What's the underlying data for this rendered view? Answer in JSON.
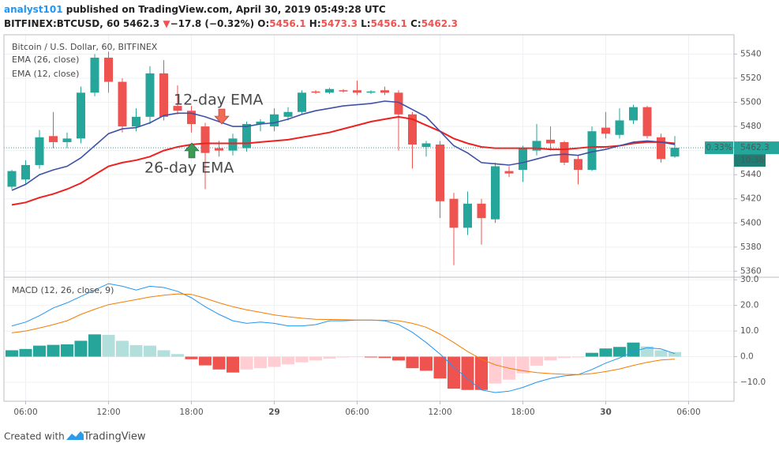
{
  "header": {
    "author": "analyst101",
    "published": "published on TradingView.com, April 30, 2019 05:49:28 UTC"
  },
  "quote": {
    "symbol": "BITFINEX:BTCUSD, 60",
    "last": "5462.3",
    "arrow": "▼",
    "change": "−17.8 (−0.32%)",
    "ohlc": [
      {
        "label": "O:",
        "value": "5456.1"
      },
      {
        "label": "H:",
        "value": "5473.3"
      },
      {
        "label": "L:",
        "value": "5456.1"
      },
      {
        "label": "C:",
        "value": "5462.3"
      }
    ]
  },
  "footer": {
    "created": "Created with",
    "brand": "TradingView"
  },
  "chart_data": [
    {
      "type": "candlestick",
      "title": "Bitcoin / U.S. Dollar, 60, BITFINEX",
      "categories": [
        null,
        "06:00",
        null,
        null,
        null,
        null,
        null,
        "12:00",
        null,
        null,
        null,
        null,
        null,
        "18:00",
        null,
        null,
        null,
        null,
        null,
        "29",
        null,
        null,
        null,
        null,
        null,
        "06:00",
        null,
        null,
        null,
        null,
        null,
        "12:00",
        null,
        null,
        null,
        null,
        null,
        "18:00",
        null,
        null,
        null,
        null,
        null,
        "30",
        null,
        null,
        null,
        null,
        null,
        "06:00"
      ],
      "open": [
        5430,
        5436,
        5448,
        5472,
        5467,
        5470,
        5508,
        5537,
        5517,
        5480,
        5488,
        5524,
        5497,
        5493,
        5480,
        5462,
        5460,
        5462,
        5482,
        5480,
        5488,
        5492,
        5509,
        5508,
        5510,
        5510,
        5508,
        5510,
        5508,
        5490,
        5463,
        5465,
        5420,
        5396,
        5416,
        5403,
        5443,
        5444,
        5460,
        5469,
        5467,
        5453,
        5444,
        5479,
        5473,
        5485,
        5496,
        5471,
        5455,
        null
      ],
      "high": [
        5444,
        5452,
        5477,
        5492,
        5475,
        5513,
        5540,
        5542,
        5520,
        5495,
        5530,
        5535,
        5514,
        5497,
        5483,
        5468,
        5474,
        5484,
        5486,
        5495,
        5496,
        5510,
        5510,
        5512,
        5511,
        5518,
        5510,
        5513,
        5510,
        5492,
        5468,
        5468,
        5425,
        5426,
        5420,
        5450,
        5447,
        5464,
        5482,
        5480,
        5468,
        5456,
        5480,
        5492,
        5495,
        5498,
        5497,
        5474,
        5472,
        null
      ],
      "low": [
        5428,
        5432,
        5445,
        5462,
        5462,
        5466,
        5505,
        5508,
        5475,
        5476,
        5482,
        5485,
        5490,
        5475,
        5428,
        5455,
        5456,
        5459,
        5476,
        5476,
        5485,
        5490,
        5507,
        5507,
        5508,
        5506,
        5507,
        5506,
        5460,
        5445,
        5455,
        5404,
        5365,
        5390,
        5382,
        5400,
        5438,
        5434,
        5456,
        5460,
        5448,
        5432,
        5443,
        5470,
        5470,
        5482,
        5470,
        5450,
        5454,
        null
      ],
      "close": [
        5443,
        5448,
        5471,
        5467,
        5470,
        5508,
        5537,
        5517,
        5480,
        5488,
        5524,
        5488,
        5493,
        5482,
        5458,
        5460,
        5470,
        5482,
        5484,
        5490,
        5492,
        5508,
        5508,
        5511,
        5509,
        5508,
        5509,
        5508,
        5490,
        5465,
        5466,
        5418,
        5396,
        5416,
        5404,
        5447,
        5441,
        5462,
        5468,
        5466,
        5450,
        5444,
        5476,
        5474,
        5485,
        5496,
        5472,
        5453,
        5462.3,
        null
      ],
      "up_color": "#26a69a",
      "down_color": "#ef5350",
      "series": [
        {
          "name": "EMA (26, close)",
          "color": "#f02020",
          "values": [
            5415,
            5417,
            5421,
            5424,
            5428,
            5433,
            5440,
            5447,
            5450,
            5452,
            5455,
            5460,
            5463,
            5465,
            5466,
            5466,
            5466,
            5466,
            5467,
            5468,
            5469,
            5471,
            5473,
            5475,
            5478,
            5481,
            5484,
            5486,
            5488,
            5486,
            5481,
            5476,
            5470,
            5466,
            5463,
            5462,
            5462,
            5462,
            5462,
            5461,
            5461,
            5462,
            5463,
            5463,
            5464,
            5466,
            5467,
            5467,
            5466,
            null
          ]
        },
        {
          "name": "EMA (12, close)",
          "color": "#3f51a5",
          "values": [
            5427,
            5432,
            5440,
            5444,
            5447,
            5454,
            5464,
            5474,
            5478,
            5479,
            5483,
            5489,
            5491,
            5491,
            5488,
            5484,
            5480,
            5480,
            5482,
            5483,
            5486,
            5490,
            5493,
            5495,
            5497,
            5498,
            5499,
            5501,
            5500,
            5494,
            5488,
            5476,
            5464,
            5458,
            5450,
            5449,
            5448,
            5450,
            5453,
            5456,
            5457,
            5456,
            5459,
            5461,
            5464,
            5467,
            5468,
            5467,
            5465,
            null
          ]
        }
      ],
      "ylim": [
        5355,
        5556
      ],
      "yticks": [
        5360,
        5380,
        5400,
        5420,
        5440,
        5460,
        5480,
        5500,
        5520,
        5540
      ],
      "grid": true,
      "annotations": [
        "12-day EMA",
        "26-day EMA"
      ],
      "price_tag": {
        "change": "0.33%",
        "price": "5462.3",
        "countdown": "10:36"
      }
    },
    {
      "type": "macd",
      "title": "MACD (12, 26, close, 9)",
      "series": [
        {
          "color": "#2196f3",
          "values": [
            12,
            13.5,
            16,
            19,
            21,
            23.5,
            26,
            28.5,
            27.5,
            26,
            27.5,
            27,
            25.5,
            23,
            19.5,
            16.5,
            14,
            13,
            13.5,
            13,
            12,
            12,
            12.5,
            14,
            14,
            14.3,
            14.3,
            14,
            12.5,
            9.5,
            5.5,
            1,
            -4,
            -8.7,
            -13,
            -14,
            -13.5,
            -12,
            -10,
            -8.5,
            -7.5,
            -7,
            -5,
            -2.5,
            -0.5,
            2,
            3.5,
            3,
            1.2,
            null
          ]
        },
        {
          "color": "#f57c00",
          "values": [
            9.3,
            10,
            11.2,
            12.5,
            14,
            16.5,
            18.5,
            20.3,
            21.3,
            22.3,
            23.3,
            24,
            24.5,
            24.3,
            22.8,
            21,
            19.5,
            18.3,
            17.3,
            16.3,
            15.6,
            15,
            14.6,
            14.5,
            14.4,
            14.3,
            14.3,
            14.2,
            14,
            13,
            11.5,
            8.8,
            5.5,
            2,
            -1,
            -3.2,
            -4.5,
            -5.5,
            -6.2,
            -6.6,
            -6.9,
            -7,
            -6.6,
            -5.8,
            -4.8,
            -3.4,
            -2.2,
            -1.3,
            -1,
            null
          ]
        }
      ],
      "histogram": {
        "values": [
          2.5,
          3,
          4.3,
          4.6,
          4.8,
          6.2,
          8.7,
          8.5,
          6.2,
          4.5,
          4.3,
          2.5,
          1,
          -1,
          -3.4,
          -5,
          -6.2,
          -5,
          -4.5,
          -4,
          -3,
          -2.2,
          -1.5,
          -0.8,
          -0.3,
          -0.2,
          -0.3,
          -0.5,
          -1.5,
          -4.5,
          -5.5,
          -8.5,
          -12.5,
          -13,
          -13,
          -10.5,
          -9,
          -6.5,
          -3.5,
          -1.5,
          -0.5,
          -0.3,
          1.5,
          3.2,
          3.8,
          5.5,
          4,
          2.5,
          1.8,
          null
        ],
        "colors": {
          "pos_up": "#26a69a",
          "pos_down": "#b2dfdb",
          "neg_down": "#ef5350",
          "neg_up": "#ffcdd2"
        }
      },
      "ylim": [
        -17.4,
        31
      ],
      "yticks": [
        {
          "value": 30,
          "label": "30.0"
        },
        {
          "value": 20,
          "label": "20.0"
        },
        {
          "value": 10,
          "label": "10.0"
        },
        {
          "value": 0,
          "label": "0.0"
        },
        {
          "value": -10,
          "label": "−10.0"
        }
      ],
      "grid": true
    }
  ]
}
